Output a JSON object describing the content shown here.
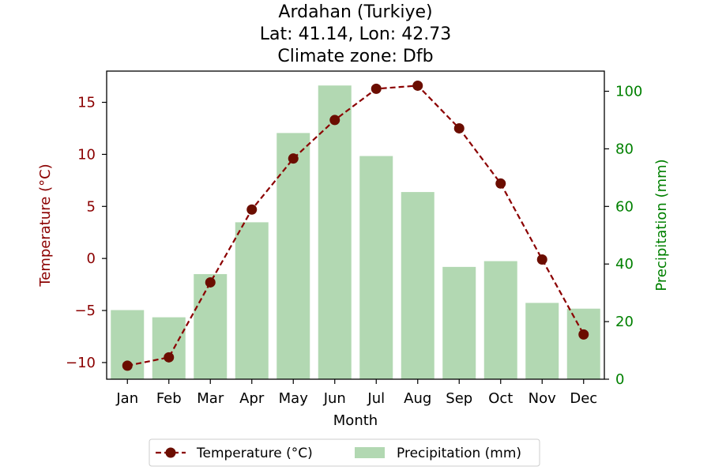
{
  "chart_data": {
    "type": "bar+line",
    "title_lines": [
      "Ardahan (Turkiye)",
      "Lat: 41.14, Lon: 42.73",
      "Climate zone: Dfb"
    ],
    "xlabel": "Month",
    "categories": [
      "Jan",
      "Feb",
      "Mar",
      "Apr",
      "May",
      "Jun",
      "Jul",
      "Aug",
      "Sep",
      "Oct",
      "Nov",
      "Dec"
    ],
    "temperature": {
      "name": "Temperature (°C)",
      "axis_label": "Temperature (°C)",
      "values": [
        -10.3,
        -9.5,
        -2.3,
        4.7,
        9.6,
        13.3,
        16.3,
        16.6,
        12.5,
        7.2,
        -0.1,
        -7.3
      ],
      "ylim": [
        -11.6,
        18.0
      ],
      "ticks": [
        -10,
        -5,
        0,
        5,
        10,
        15
      ],
      "tick_labels": [
        "−10",
        "−5",
        "0",
        "5",
        "10",
        "15"
      ],
      "color": "#8b0000",
      "marker_color": "#6b0d00",
      "line_style": "dashed"
    },
    "precipitation": {
      "name": "Precipitation (mm)",
      "axis_label": "Precipitation (mm)",
      "values": [
        24,
        21.5,
        36.5,
        54.5,
        85.5,
        102,
        77.5,
        65,
        39,
        41,
        26.5,
        24.5
      ],
      "ylim": [
        0,
        107
      ],
      "ticks": [
        0,
        20,
        40,
        60,
        80,
        100
      ],
      "tick_labels": [
        "0",
        "20",
        "40",
        "60",
        "80",
        "100"
      ],
      "color": "#b2d8b2",
      "axis_color": "#008000"
    },
    "legend_position": "bottom-center",
    "grid": false
  }
}
